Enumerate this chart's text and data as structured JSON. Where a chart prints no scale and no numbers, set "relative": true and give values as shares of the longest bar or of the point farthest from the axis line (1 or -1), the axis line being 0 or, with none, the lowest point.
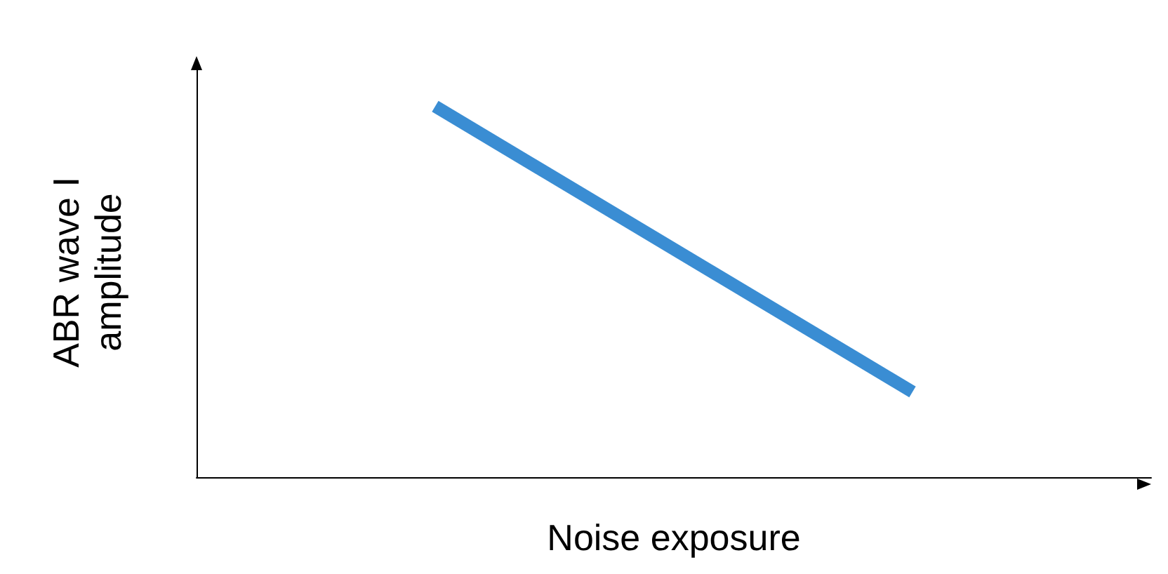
{
  "chart_data": {
    "type": "line",
    "relative": true,
    "xlabel": "Noise exposure",
    "ylabel": "ABR wave I amplitude",
    "categories": [
      null,
      null
    ],
    "series": [
      {
        "color": "#3a8dd3",
        "values": [
          1,
          0.23
        ]
      }
    ],
    "grid": false,
    "marker": "none",
    "line_style": "solid"
  }
}
